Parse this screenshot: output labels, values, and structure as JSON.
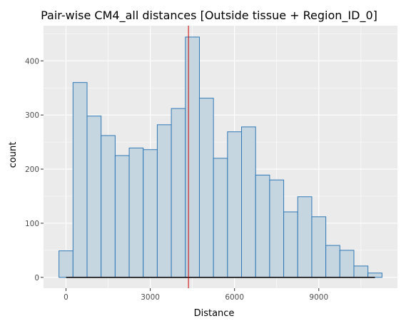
{
  "chart_data": {
    "type": "bar",
    "title": "Pair-wise CM4_all distances [Outside tissue + Region_ID_0]",
    "xlabel": "Distance",
    "ylabel": "count",
    "xlim": [
      -800,
      11800
    ],
    "ylim": [
      -20,
      465
    ],
    "x_ticks": [
      0,
      3000,
      6000,
      9000
    ],
    "x_tick_labels": [
      "0",
      "3000",
      "6000",
      "9000"
    ],
    "y_ticks": [
      0,
      100,
      200,
      300,
      400
    ],
    "y_tick_labels": [
      "0",
      "100",
      "200",
      "300",
      "400"
    ],
    "bin_width": 500,
    "bins": [
      {
        "start": -250,
        "end": 250,
        "count": 49
      },
      {
        "start": 250,
        "end": 750,
        "count": 360
      },
      {
        "start": 750,
        "end": 1250,
        "count": 298
      },
      {
        "start": 1250,
        "end": 1750,
        "count": 262
      },
      {
        "start": 1750,
        "end": 2250,
        "count": 225
      },
      {
        "start": 2250,
        "end": 2750,
        "count": 239
      },
      {
        "start": 2750,
        "end": 3250,
        "count": 236
      },
      {
        "start": 3250,
        "end": 3750,
        "count": 282
      },
      {
        "start": 3750,
        "end": 4250,
        "count": 312
      },
      {
        "start": 4250,
        "end": 4750,
        "count": 444
      },
      {
        "start": 4750,
        "end": 5250,
        "count": 331
      },
      {
        "start": 5250,
        "end": 5750,
        "count": 220
      },
      {
        "start": 5750,
        "end": 6250,
        "count": 269
      },
      {
        "start": 6250,
        "end": 6750,
        "count": 278
      },
      {
        "start": 6750,
        "end": 7250,
        "count": 189
      },
      {
        "start": 7250,
        "end": 7750,
        "count": 180
      },
      {
        "start": 7750,
        "end": 8250,
        "count": 121
      },
      {
        "start": 8250,
        "end": 8750,
        "count": 149
      },
      {
        "start": 8750,
        "end": 9250,
        "count": 112
      },
      {
        "start": 9250,
        "end": 9750,
        "count": 59
      },
      {
        "start": 9750,
        "end": 10250,
        "count": 50
      },
      {
        "start": 10250,
        "end": 10750,
        "count": 21
      },
      {
        "start": 10750,
        "end": 11250,
        "count": 8
      }
    ],
    "vline": {
      "x": 4360,
      "color": "#cc0000"
    },
    "baseline_segment": {
      "x_start": 0,
      "x_end": 11000,
      "y": 0,
      "color": "#000000"
    },
    "colors": {
      "panel_background": "#ebebeb",
      "grid": "#ffffff",
      "bar_fill": "#c6d6e1",
      "bar_stroke": "#2f78b5"
    },
    "grid": true
  }
}
